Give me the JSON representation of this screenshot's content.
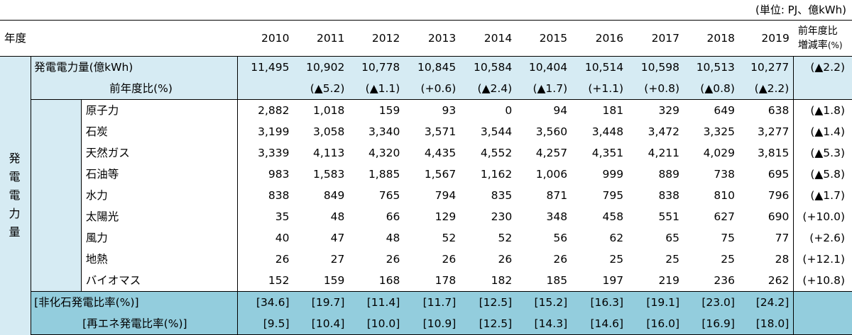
{
  "unit_label": "(単位: PJ、億kWh)",
  "header": {
    "year_label": "年度",
    "years": [
      "2010",
      "2011",
      "2012",
      "2013",
      "2014",
      "2015",
      "2016",
      "2017",
      "2018",
      "2019"
    ],
    "rate_line1": "前年度比",
    "rate_line2": "増減率",
    "rate_line2_unit": "(%)"
  },
  "side_label": [
    "発",
    "電",
    "電",
    "力",
    "量"
  ],
  "total": {
    "label": "発電電力量(億kWh)",
    "values": [
      "11,495",
      "10,902",
      "10,778",
      "10,845",
      "10,584",
      "10,404",
      "10,514",
      "10,598",
      "10,513",
      "10,277"
    ],
    "rate": "(▲2.2)"
  },
  "yoy": {
    "label": "前年度比(%)",
    "values": [
      "",
      "(▲5.2)",
      "(▲1.1)",
      "(+0.6)",
      "(▲2.4)",
      "(▲1.7)",
      "(+1.1)",
      "(+0.8)",
      "(▲0.8)",
      "(▲2.2)"
    ]
  },
  "sources": [
    {
      "label": "原子力",
      "values": [
        "2,882",
        "1,018",
        "159",
        "93",
        "0",
        "94",
        "181",
        "329",
        "649",
        "638"
      ],
      "rate": "(▲1.8)"
    },
    {
      "label": "石炭",
      "values": [
        "3,199",
        "3,058",
        "3,340",
        "3,571",
        "3,544",
        "3,560",
        "3,448",
        "3,472",
        "3,325",
        "3,277"
      ],
      "rate": "(▲1.4)"
    },
    {
      "label": "天然ガス",
      "values": [
        "3,339",
        "4,113",
        "4,320",
        "4,435",
        "4,552",
        "4,257",
        "4,351",
        "4,211",
        "4,029",
        "3,815"
      ],
      "rate": "(▲5.3)"
    },
    {
      "label": "石油等",
      "values": [
        "983",
        "1,583",
        "1,885",
        "1,567",
        "1,162",
        "1,006",
        "999",
        "889",
        "738",
        "695"
      ],
      "rate": "(▲5.8)"
    },
    {
      "label": "水力",
      "values": [
        "838",
        "849",
        "765",
        "794",
        "835",
        "871",
        "795",
        "838",
        "810",
        "796"
      ],
      "rate": "(▲1.7)"
    },
    {
      "label": "太陽光",
      "values": [
        "35",
        "48",
        "66",
        "129",
        "230",
        "348",
        "458",
        "551",
        "627",
        "690"
      ],
      "rate": "(+10.0)"
    },
    {
      "label": "風力",
      "values": [
        "40",
        "47",
        "48",
        "52",
        "52",
        "56",
        "62",
        "65",
        "75",
        "77"
      ],
      "rate": "(+2.6)"
    },
    {
      "label": "地熱",
      "values": [
        "26",
        "27",
        "26",
        "26",
        "26",
        "26",
        "25",
        "25",
        "25",
        "28"
      ],
      "rate": "(+12.1)"
    },
    {
      "label": "バイオマス",
      "values": [
        "152",
        "159",
        "168",
        "178",
        "182",
        "185",
        "197",
        "219",
        "236",
        "262"
      ],
      "rate": "(+10.8)"
    }
  ],
  "nonfossil": {
    "label": "[非化石発電比率(%)]",
    "values": [
      "[34.6]",
      "[19.7]",
      "[11.4]",
      "[11.7]",
      "[12.5]",
      "[15.2]",
      "[16.3]",
      "[19.1]",
      "[23.0]",
      "[24.2]"
    ]
  },
  "renewable": {
    "label": "[再エネ発電比率(%)]",
    "values": [
      "[9.5]",
      "[10.4]",
      "[10.0]",
      "[10.9]",
      "[12.5]",
      "[14.3]",
      "[14.6]",
      "[16.0]",
      "[16.9]",
      "[18.0]"
    ]
  }
}
